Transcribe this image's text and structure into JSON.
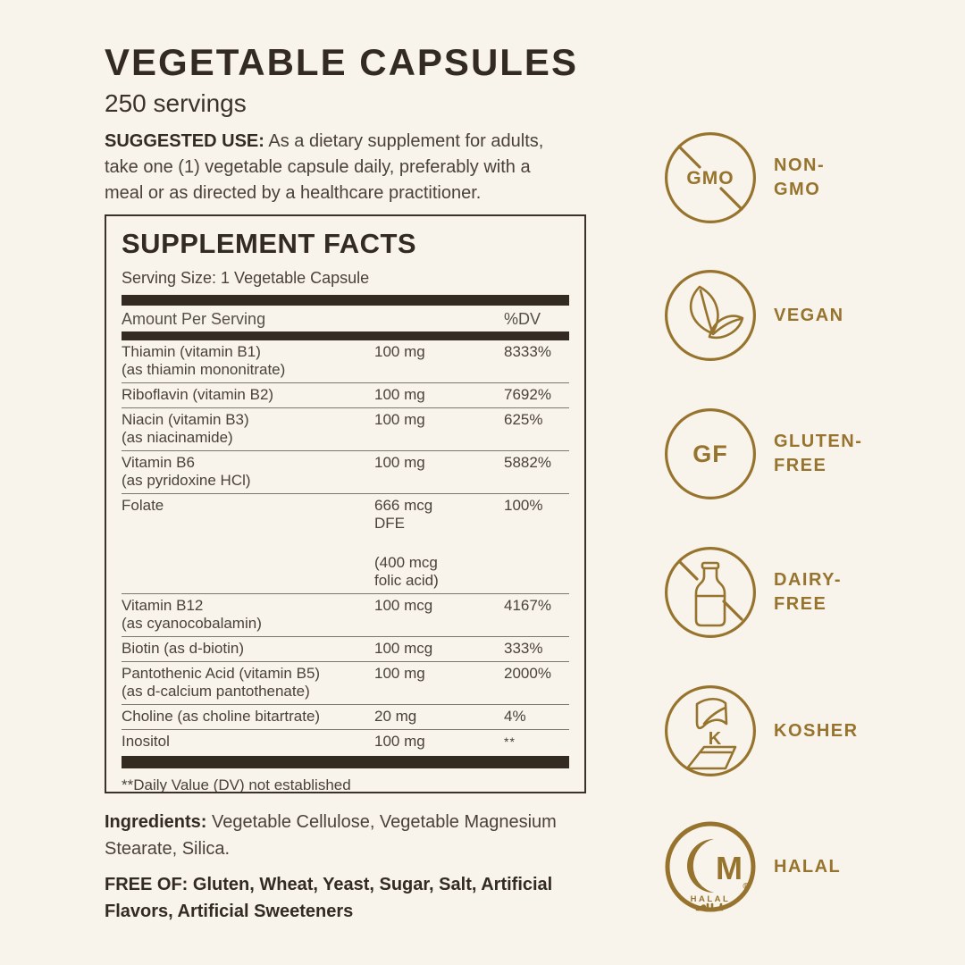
{
  "colors": {
    "background": "#F8F3EB",
    "accent_gold": "#97742E",
    "text_dark": "#332B23",
    "text_body": "#4A423A",
    "bar_dark": "#332A22"
  },
  "header": {
    "title": "VEGETABLE CAPSULES",
    "servings": "250 servings"
  },
  "suggested_use": {
    "label": "SUGGESTED USE:",
    "lines": [
      "As a dietary supplement for adults,",
      "take one (1) vegetable capsule daily, preferably with a",
      "meal or as directed by a healthcare practitioner."
    ]
  },
  "supplement_facts": {
    "title": "SUPPLEMENT FACTS",
    "serving_size": "Serving Size: 1 Vegetable Capsule",
    "columns": {
      "amount_col": "Amount Per Serving",
      "dv_col": "%DV"
    },
    "rows": [
      {
        "name": "Thiamin (vitamin B1)",
        "sub": "(as thiamin mononitrate)",
        "amount": "100 mg",
        "dv": "8333%"
      },
      {
        "name": "Riboflavin (vitamin B2)",
        "sub": "",
        "amount": "100 mg",
        "dv": "7692%"
      },
      {
        "name": "Niacin (vitamin B3)",
        "sub": "(as niacinamide)",
        "amount": "100 mg",
        "dv": "625%"
      },
      {
        "name": "Vitamin B6",
        "sub": "(as pyridoxine HCl)",
        "amount": "100 mg",
        "dv": "5882%"
      },
      {
        "name": "Folate",
        "sub": "",
        "amount": "666 mcg\nDFE",
        "amount2": "(400 mcg\nfolic acid)",
        "dv": "100%"
      },
      {
        "name": "Vitamin B12",
        "sub": "(as cyanocobalamin)",
        "amount": "100 mcg",
        "dv": "4167%"
      },
      {
        "name": "Biotin (as d-biotin)",
        "sub": "",
        "amount": "100 mcg",
        "dv": "333%"
      },
      {
        "name": "Pantothenic Acid (vitamin B5)",
        "sub": "(as d-calcium pantothenate)",
        "amount": "100 mg",
        "dv": "2000%"
      },
      {
        "name": "Choline (as choline bitartrate)",
        "sub": "",
        "amount": "20 mg",
        "dv": "4%"
      },
      {
        "name": "Inositol",
        "sub": "",
        "amount": "100 mg",
        "dv": "**"
      }
    ],
    "footnote": "**Daily Value (DV) not established"
  },
  "ingredients": {
    "label": "Ingredients:",
    "lines": [
      "Vegetable Cellulose, Vegetable Magnesium",
      "Stearate, Silica."
    ]
  },
  "free_of": {
    "label": "FREE OF:",
    "lines": [
      "Gluten, Wheat, Yeast, Sugar, Salt, Artificial",
      "Flavors, Artificial Sweeteners"
    ]
  },
  "badges": [
    {
      "id": "non-gmo",
      "line1": "NON-",
      "line2": "GMO",
      "icon_text": "GMO"
    },
    {
      "id": "vegan",
      "line1": "VEGAN",
      "line2": ""
    },
    {
      "id": "gluten-free",
      "line1": "GLUTEN-",
      "line2": "FREE",
      "icon_text": "GF"
    },
    {
      "id": "dairy-free",
      "line1": "DAIRY-",
      "line2": "FREE"
    },
    {
      "id": "kosher",
      "line1": "KOSHER",
      "line2": "",
      "icon_text": "K"
    },
    {
      "id": "halal",
      "line1": "HALAL",
      "line2": "",
      "icon_text": "M",
      "icon_caption": "HALAL",
      "icon_arabic": "حلال"
    }
  ]
}
